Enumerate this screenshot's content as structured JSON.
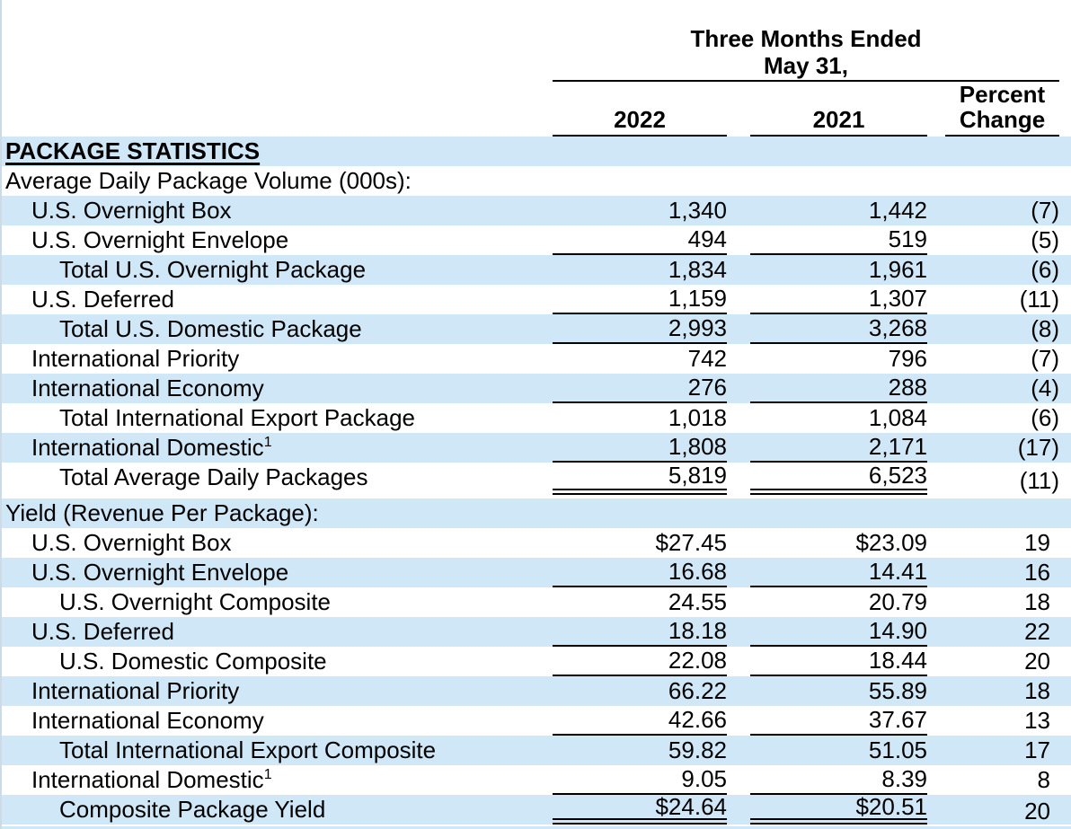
{
  "header": {
    "period_line1": "Three Months Ended",
    "period_line2": "May 31,",
    "year_col_1": "2022",
    "year_col_2": "2021",
    "pct_line1": "Percent",
    "pct_line2": "Change"
  },
  "colors": {
    "row_highlight": "#cfe7f6",
    "text": "#000000",
    "rule": "#000000"
  },
  "table": {
    "columns": [
      "2022",
      "2021",
      "Percent Change"
    ],
    "rows": [
      {
        "label": "PACKAGE STATISTICS",
        "indent": 0,
        "emphasis": true,
        "v2022": "",
        "v2021": "",
        "pct": "",
        "rule": "none"
      },
      {
        "label": "Average Daily Package Volume (000s):",
        "indent": 0,
        "v2022": "",
        "v2021": "",
        "pct": "",
        "rule": "none"
      },
      {
        "label": "U.S. Overnight Box",
        "indent": 1,
        "v2022": "1,340",
        "v2021": "1,442",
        "pct": "(7)",
        "rule": "none"
      },
      {
        "label": "U.S. Overnight Envelope",
        "indent": 1,
        "v2022": "494",
        "v2021": "519",
        "pct": "(5)",
        "rule": "single"
      },
      {
        "label": "Total U.S. Overnight Package",
        "indent": 2,
        "v2022": "1,834",
        "v2021": "1,961",
        "pct": "(6)",
        "rule": "none"
      },
      {
        "label": "U.S. Deferred",
        "indent": 1,
        "v2022": "1,159",
        "v2021": "1,307",
        "pct": "(11)",
        "rule": "single"
      },
      {
        "label": "Total U.S. Domestic Package",
        "indent": 2,
        "v2022": "2,993",
        "v2021": "3,268",
        "pct": "(8)",
        "rule": "single"
      },
      {
        "label": "International Priority",
        "indent": 1,
        "v2022": "742",
        "v2021": "796",
        "pct": "(7)",
        "rule": "none"
      },
      {
        "label": "International Economy",
        "indent": 1,
        "v2022": "276",
        "v2021": "288",
        "pct": "(4)",
        "rule": "single"
      },
      {
        "label": "Total International Export Package",
        "indent": 2,
        "v2022": "1,018",
        "v2021": "1,084",
        "pct": "(6)",
        "rule": "none"
      },
      {
        "label": "International Domestic",
        "sup": "1",
        "indent": 1,
        "v2022": "1,808",
        "v2021": "2,171",
        "pct": "(17)",
        "rule": "single"
      },
      {
        "label": "Total Average Daily Packages",
        "indent": 2,
        "v2022": "5,819",
        "v2021": "6,523",
        "pct": "(11)",
        "rule": "double"
      },
      {
        "label": "Yield (Revenue Per Package):",
        "indent": 0,
        "v2022": "",
        "v2021": "",
        "pct": "",
        "rule": "none"
      },
      {
        "label": "U.S. Overnight Box",
        "indent": 1,
        "v2022": "$27.45",
        "v2021": "$23.09",
        "pct": "19",
        "rule": "none"
      },
      {
        "label": "U.S. Overnight Envelope",
        "indent": 1,
        "v2022": "16.68",
        "v2021": "14.41",
        "pct": "16",
        "rule": "single"
      },
      {
        "label": "U.S. Overnight Composite",
        "indent": 2,
        "v2022": "24.55",
        "v2021": "20.79",
        "pct": "18",
        "rule": "none"
      },
      {
        "label": "U.S. Deferred",
        "indent": 1,
        "v2022": "18.18",
        "v2021": "14.90",
        "pct": "22",
        "rule": "single"
      },
      {
        "label": "U.S. Domestic Composite",
        "indent": 2,
        "v2022": "22.08",
        "v2021": "18.44",
        "pct": "20",
        "rule": "single"
      },
      {
        "label": "International Priority",
        "indent": 1,
        "v2022": "66.22",
        "v2021": "55.89",
        "pct": "18",
        "rule": "none"
      },
      {
        "label": "International Economy",
        "indent": 1,
        "v2022": "42.66",
        "v2021": "37.67",
        "pct": "13",
        "rule": "single"
      },
      {
        "label": "Total International Export Composite",
        "indent": 2,
        "v2022": "59.82",
        "v2021": "51.05",
        "pct": "17",
        "rule": "none"
      },
      {
        "label": "International Domestic",
        "sup": "1",
        "indent": 1,
        "v2022": "9.05",
        "v2021": "8.39",
        "pct": "8",
        "rule": "single"
      },
      {
        "label": "Composite Package Yield",
        "indent": 2,
        "v2022": "$24.64",
        "v2021": "$20.51",
        "pct": "20",
        "rule": "double"
      }
    ]
  }
}
